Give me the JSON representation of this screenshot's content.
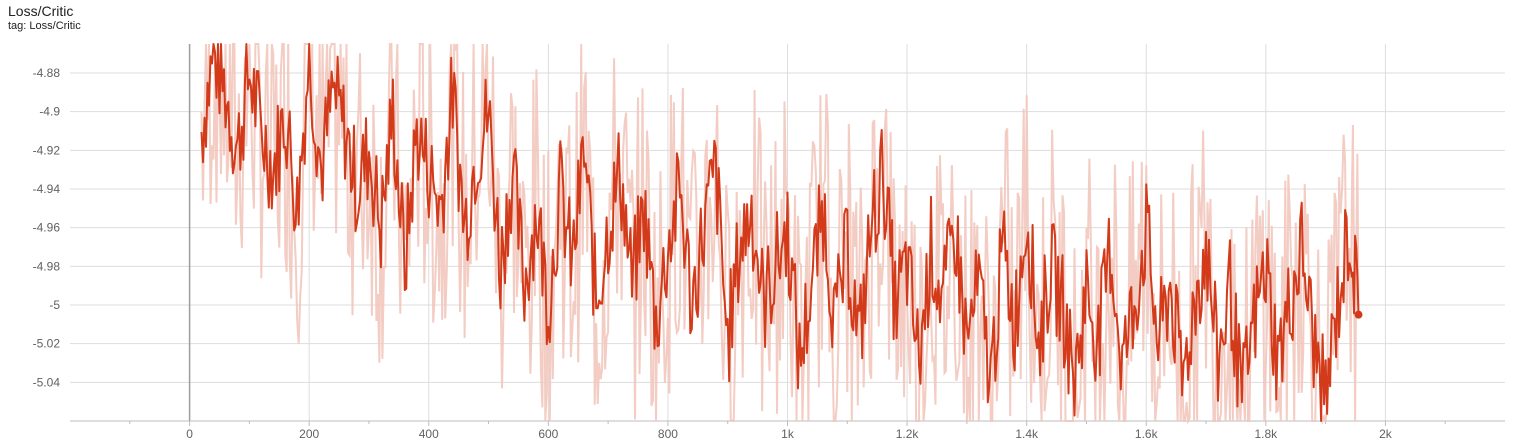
{
  "header": {
    "title": "Loss/Critic",
    "tag": "tag: Loss/Critic"
  },
  "colors": {
    "smoothed": "#d23a1a",
    "raw": "#f2c7bd",
    "grid": "#dddddd",
    "zero_axis": "#9e9e9e"
  },
  "chart_data": {
    "type": "line",
    "title": "Loss/Critic",
    "xlabel": "",
    "ylabel": "",
    "xlim": [
      -200,
      2200
    ],
    "ylim": [
      -5.06,
      -4.865
    ],
    "x_ticks": [
      0,
      200,
      400,
      600,
      800,
      1000,
      1200,
      1400,
      1600,
      1800,
      2000
    ],
    "x_tick_labels": [
      "0",
      "200",
      "400",
      "600",
      "800",
      "1k",
      "1.2k",
      "1.4k",
      "1.6k",
      "1.8k",
      "2k"
    ],
    "y_ticks": [
      -4.88,
      -4.9,
      -4.92,
      -4.94,
      -4.96,
      -4.98,
      -5,
      -5.02,
      -5.04
    ],
    "y_tick_labels": [
      "-4.88",
      "-4.9",
      "-4.92",
      "-4.94",
      "-4.96",
      "-4.98",
      "-5",
      "-5.02",
      "-5.04"
    ],
    "grid": true,
    "series": [
      {
        "x": [
          20,
          40,
          60,
          80,
          100,
          120,
          140,
          160,
          180,
          200,
          220,
          240,
          260,
          280,
          300,
          320,
          340,
          360,
          380,
          400,
          420,
          440,
          460,
          480,
          500,
          520,
          540,
          560,
          580,
          600,
          620,
          640,
          660,
          680,
          700,
          720,
          740,
          760,
          780,
          800,
          820,
          840,
          860,
          880,
          900,
          920,
          940,
          960,
          980,
          1000,
          1020,
          1040,
          1060,
          1080,
          1100,
          1120,
          1140,
          1160,
          1180,
          1200,
          1220,
          1240,
          1260,
          1280,
          1300,
          1320,
          1340,
          1360,
          1380,
          1400,
          1420,
          1440,
          1460,
          1480,
          1500,
          1520,
          1540,
          1560,
          1580,
          1600,
          1620,
          1640,
          1660,
          1680,
          1700,
          1720,
          1740,
          1760,
          1780,
          1800,
          1820,
          1840,
          1860,
          1880,
          1900,
          1920,
          1940,
          1955
        ],
        "values": [
          -4.91,
          -4.87,
          -4.89,
          -4.92,
          -4.88,
          -4.91,
          -4.93,
          -4.9,
          -4.95,
          -4.87,
          -4.93,
          -4.89,
          -4.91,
          -4.94,
          -4.92,
          -4.96,
          -4.9,
          -4.98,
          -4.91,
          -4.93,
          -4.95,
          -4.89,
          -4.96,
          -4.92,
          -4.9,
          -4.98,
          -4.93,
          -4.99,
          -4.95,
          -5.0,
          -4.94,
          -4.98,
          -4.92,
          -5.0,
          -4.96,
          -4.93,
          -4.99,
          -4.95,
          -5.01,
          -4.97,
          -4.94,
          -5.0,
          -4.96,
          -4.93,
          -5.02,
          -4.97,
          -4.95,
          -5.0,
          -4.98,
          -4.96,
          -5.03,
          -4.99,
          -4.95,
          -5.01,
          -4.97,
          -5.02,
          -4.96,
          -4.93,
          -5.0,
          -4.98,
          -5.03,
          -4.97,
          -5.0,
          -4.96,
          -5.02,
          -4.99,
          -5.04,
          -4.97,
          -5.01,
          -4.95,
          -5.02,
          -4.98,
          -5.0,
          -5.04,
          -4.99,
          -5.02,
          -4.97,
          -5.03,
          -5.0,
          -4.96,
          -5.02,
          -4.99,
          -5.04,
          -5.0,
          -4.97,
          -5.03,
          -4.99,
          -5.05,
          -5.01,
          -4.98,
          -5.03,
          -5.0,
          -4.97,
          -5.02,
          -5.05,
          -5.0,
          -4.96,
          -5.005
        ]
      }
    ],
    "legend": "none"
  }
}
